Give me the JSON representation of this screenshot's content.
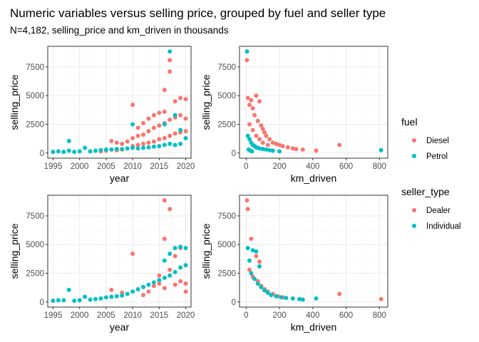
{
  "title": "Numeric variables versus selling price, grouped by fuel and seller type",
  "subtitle": "N=4,182, selling_price and km_driven in thousands",
  "colors": {
    "red": "#F8766D",
    "teal": "#00BFC4",
    "grid": "#ebebeb",
    "border": "#333333"
  },
  "legends": [
    {
      "title": "fuel",
      "entries": [
        {
          "label": "Diesel",
          "color": "#F8766D"
        },
        {
          "label": "Petrol",
          "color": "#00BFC4"
        }
      ]
    },
    {
      "title": "seller_type",
      "entries": [
        {
          "label": "Dealer",
          "color": "#F8766D"
        },
        {
          "label": "Individual",
          "color": "#00BFC4"
        }
      ]
    }
  ],
  "chart_data": [
    {
      "type": "scatter",
      "grouping": "fuel",
      "xlabel": "year",
      "ylabel": "selling_price",
      "xlim": [
        1994,
        2021
      ],
      "ylim": [
        -450,
        9300
      ],
      "xticks": [
        1995,
        2000,
        2005,
        2010,
        2015,
        2020
      ],
      "yticks": [
        0,
        2500,
        5000,
        7500
      ],
      "series": [
        {
          "name": "Diesel",
          "color": "#F8766D",
          "points": [
            [
              2004,
              150
            ],
            [
              2005,
              200
            ],
            [
              2006,
              300
            ],
            [
              2006,
              1050
            ],
            [
              2007,
              250
            ],
            [
              2007,
              900
            ],
            [
              2008,
              300
            ],
            [
              2008,
              800
            ],
            [
              2009,
              400
            ],
            [
              2009,
              1000
            ],
            [
              2010,
              600
            ],
            [
              2010,
              1300
            ],
            [
              2010,
              4200
            ],
            [
              2011,
              700
            ],
            [
              2011,
              1500
            ],
            [
              2011,
              2200
            ],
            [
              2012,
              800
            ],
            [
              2012,
              1600
            ],
            [
              2012,
              2600
            ],
            [
              2013,
              900
            ],
            [
              2013,
              1900
            ],
            [
              2013,
              3000
            ],
            [
              2014,
              1000
            ],
            [
              2014,
              2200
            ],
            [
              2014,
              3300
            ],
            [
              2015,
              1200
            ],
            [
              2015,
              2400
            ],
            [
              2015,
              3500
            ],
            [
              2016,
              1300
            ],
            [
              2016,
              2600
            ],
            [
              2016,
              3600
            ],
            [
              2016,
              5500
            ],
            [
              2017,
              1500
            ],
            [
              2017,
              2900
            ],
            [
              2017,
              7100
            ],
            [
              2017,
              8100
            ],
            [
              2018,
              1700
            ],
            [
              2018,
              3100
            ],
            [
              2018,
              4500
            ],
            [
              2019,
              1800
            ],
            [
              2019,
              3300
            ],
            [
              2019,
              4800
            ],
            [
              2020,
              1900
            ],
            [
              2020,
              3000
            ],
            [
              2020,
              4700
            ]
          ]
        },
        {
          "name": "Petrol",
          "color": "#00BFC4",
          "points": [
            [
              1995,
              100
            ],
            [
              1996,
              150
            ],
            [
              1997,
              100
            ],
            [
              1998,
              1050
            ],
            [
              1998,
              200
            ],
            [
              1999,
              100
            ],
            [
              2000,
              150
            ],
            [
              2001,
              450
            ],
            [
              2002,
              150
            ],
            [
              2003,
              200
            ],
            [
              2004,
              250
            ],
            [
              2005,
              300
            ],
            [
              2006,
              300
            ],
            [
              2007,
              350
            ],
            [
              2008,
              350
            ],
            [
              2009,
              400
            ],
            [
              2010,
              450
            ],
            [
              2010,
              2500
            ],
            [
              2011,
              400
            ],
            [
              2012,
              450
            ],
            [
              2013,
              500
            ],
            [
              2014,
              550
            ],
            [
              2015,
              600
            ],
            [
              2016,
              700
            ],
            [
              2016,
              2500
            ],
            [
              2017,
              800
            ],
            [
              2017,
              8850
            ],
            [
              2018,
              700
            ],
            [
              2018,
              3300
            ],
            [
              2019,
              800
            ],
            [
              2019,
              2000
            ],
            [
              2020,
              1300
            ]
          ]
        }
      ]
    },
    {
      "type": "scatter",
      "grouping": "fuel",
      "xlabel": "km_driven",
      "ylabel": "selling_price",
      "xlim": [
        -40,
        850
      ],
      "ylim": [
        -450,
        9300
      ],
      "xticks": [
        0,
        200,
        400,
        600,
        800
      ],
      "yticks": [
        0,
        2500,
        5000,
        7500
      ],
      "series": [
        {
          "name": "Diesel",
          "color": "#F8766D",
          "points": [
            [
              5,
              8100
            ],
            [
              10,
              4800
            ],
            [
              20,
              4200
            ],
            [
              30,
              4600
            ],
            [
              40,
              3900
            ],
            [
              50,
              3300
            ],
            [
              60,
              5000
            ],
            [
              70,
              2800
            ],
            [
              80,
              4500
            ],
            [
              90,
              2400
            ],
            [
              100,
              2100
            ],
            [
              110,
              1800
            ],
            [
              120,
              1500
            ],
            [
              140,
              1200
            ],
            [
              160,
              900
            ],
            [
              180,
              800
            ],
            [
              200,
              700
            ],
            [
              220,
              600
            ],
            [
              250,
              500
            ],
            [
              280,
              400
            ],
            [
              300,
              350
            ],
            [
              340,
              300
            ],
            [
              420,
              200
            ],
            [
              560,
              700
            ],
            [
              20,
              2500
            ],
            [
              40,
              2000
            ],
            [
              60,
              1500
            ],
            [
              80,
              1200
            ],
            [
              100,
              900
            ],
            [
              130,
              700
            ]
          ]
        },
        {
          "name": "Petrol",
          "color": "#00BFC4",
          "points": [
            [
              5,
              8850
            ],
            [
              10,
              1500
            ],
            [
              20,
              1200
            ],
            [
              30,
              900
            ],
            [
              40,
              700
            ],
            [
              50,
              600
            ],
            [
              60,
              500
            ],
            [
              70,
              450
            ],
            [
              80,
              400
            ],
            [
              100,
              350
            ],
            [
              120,
              300
            ],
            [
              140,
              250
            ],
            [
              160,
              200
            ],
            [
              200,
              150
            ],
            [
              810,
              250
            ],
            [
              15,
              300
            ],
            [
              25,
              200
            ],
            [
              35,
              150
            ]
          ]
        }
      ]
    },
    {
      "type": "scatter",
      "grouping": "seller_type",
      "xlabel": "year",
      "ylabel": "selling_price",
      "xlim": [
        1994,
        2021
      ],
      "ylim": [
        -450,
        9300
      ],
      "xticks": [
        1995,
        2000,
        2005,
        2010,
        2015,
        2020
      ],
      "yticks": [
        0,
        2500,
        5000,
        7500
      ],
      "series": [
        {
          "name": "Dealer",
          "color": "#F8766D",
          "points": [
            [
              2006,
              1050
            ],
            [
              2008,
              800
            ],
            [
              2010,
              4200
            ],
            [
              2012,
              600
            ],
            [
              2013,
              900
            ],
            [
              2014,
              1400
            ],
            [
              2015,
              1600
            ],
            [
              2015,
              2300
            ],
            [
              2016,
              5500
            ],
            [
              2016,
              8850
            ],
            [
              2016,
              1200
            ],
            [
              2017,
              8100
            ],
            [
              2017,
              2800
            ],
            [
              2018,
              1500
            ],
            [
              2018,
              4000
            ],
            [
              2019,
              1800
            ],
            [
              2019,
              4700
            ],
            [
              2020,
              900
            ],
            [
              2020,
              1600
            ]
          ]
        },
        {
          "name": "Individual",
          "color": "#00BFC4",
          "points": [
            [
              1995,
              100
            ],
            [
              1996,
              150
            ],
            [
              1997,
              150
            ],
            [
              1998,
              1050
            ],
            [
              1999,
              100
            ],
            [
              2000,
              150
            ],
            [
              2001,
              450
            ],
            [
              2002,
              200
            ],
            [
              2003,
              250
            ],
            [
              2004,
              300
            ],
            [
              2005,
              400
            ],
            [
              2006,
              450
            ],
            [
              2007,
              500
            ],
            [
              2008,
              550
            ],
            [
              2009,
              700
            ],
            [
              2010,
              900
            ],
            [
              2011,
              1100
            ],
            [
              2012,
              1300
            ],
            [
              2013,
              1500
            ],
            [
              2014,
              1700
            ],
            [
              2015,
              1900
            ],
            [
              2016,
              2100
            ],
            [
              2016,
              3600
            ],
            [
              2017,
              2300
            ],
            [
              2017,
              4200
            ],
            [
              2018,
              2600
            ],
            [
              2018,
              4700
            ],
            [
              2019,
              3000
            ],
            [
              2019,
              4800
            ],
            [
              2020,
              3200
            ],
            [
              2020,
              4700
            ]
          ]
        }
      ]
    },
    {
      "type": "scatter",
      "grouping": "seller_type",
      "xlabel": "km_driven",
      "ylabel": "selling_price",
      "xlim": [
        -40,
        850
      ],
      "ylim": [
        -450,
        9300
      ],
      "xticks": [
        0,
        200,
        400,
        600,
        800
      ],
      "yticks": [
        0,
        2500,
        5000,
        7500
      ],
      "series": [
        {
          "name": "Dealer",
          "color": "#F8766D",
          "points": [
            [
              5,
              8850
            ],
            [
              10,
              8100
            ],
            [
              30,
              5500
            ],
            [
              60,
              4000
            ],
            [
              80,
              3500
            ],
            [
              20,
              2800
            ],
            [
              40,
              2200
            ],
            [
              70,
              1800
            ],
            [
              90,
              1400
            ],
            [
              110,
              1100
            ],
            [
              130,
              900
            ],
            [
              160,
              700
            ],
            [
              190,
              500
            ],
            [
              220,
              400
            ],
            [
              560,
              700
            ],
            [
              810,
              250
            ]
          ]
        },
        {
          "name": "Individual",
          "color": "#00BFC4",
          "points": [
            [
              10,
              4700
            ],
            [
              20,
              3600
            ],
            [
              40,
              4500
            ],
            [
              60,
              4400
            ],
            [
              80,
              3100
            ],
            [
              30,
              2500
            ],
            [
              50,
              2000
            ],
            [
              70,
              1600
            ],
            [
              90,
              1300
            ],
            [
              110,
              1000
            ],
            [
              130,
              800
            ],
            [
              150,
              600
            ],
            [
              180,
              500
            ],
            [
              210,
              400
            ],
            [
              240,
              350
            ],
            [
              280,
              300
            ],
            [
              320,
              250
            ],
            [
              340,
              200
            ],
            [
              420,
              300
            ]
          ]
        }
      ]
    }
  ]
}
